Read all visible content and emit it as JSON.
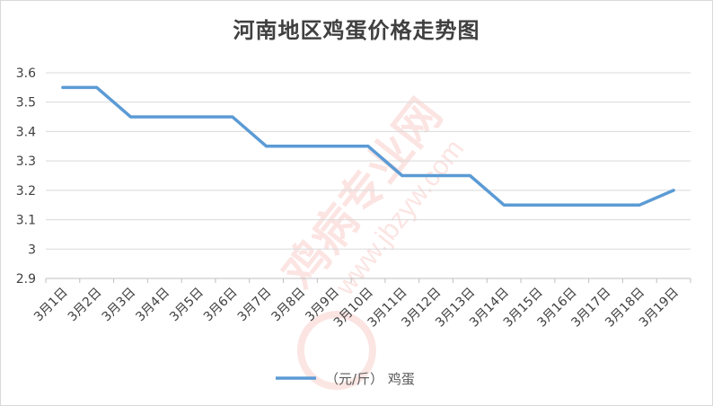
{
  "chart_data": {
    "type": "line",
    "title": "河南地区鸡蛋价格走势图",
    "categories": [
      "3月1日",
      "3月2日",
      "3月3日",
      "3月4日",
      "3月5日",
      "3月6日",
      "3月7日",
      "3月8日",
      "3月9日",
      "3月10日",
      "3月11日",
      "3月12日",
      "3月13日",
      "3月14日",
      "3月15日",
      "3月16日",
      "3月17日",
      "3月18日",
      "3月19日"
    ],
    "series": [
      {
        "name": "（元/斤） 鸡蛋",
        "color": "#5b9bd5",
        "values": [
          3.55,
          3.55,
          3.45,
          3.45,
          3.45,
          3.45,
          3.35,
          3.35,
          3.35,
          3.35,
          3.25,
          3.25,
          3.25,
          3.15,
          3.15,
          3.15,
          3.15,
          3.15,
          3.2
        ]
      }
    ],
    "ylim": [
      2.9,
      3.6
    ],
    "yticks": [
      2.9,
      3.0,
      3.1,
      3.2,
      3.3,
      3.4,
      3.5,
      3.6
    ],
    "ytick_labels": [
      "2.9",
      "3",
      "3.1",
      "3.2",
      "3.3",
      "3.4",
      "3.5",
      "3.6"
    ],
    "grid": true,
    "legend_position": "bottom"
  },
  "watermark": "鸡病专业网 www.jbzyw.com"
}
